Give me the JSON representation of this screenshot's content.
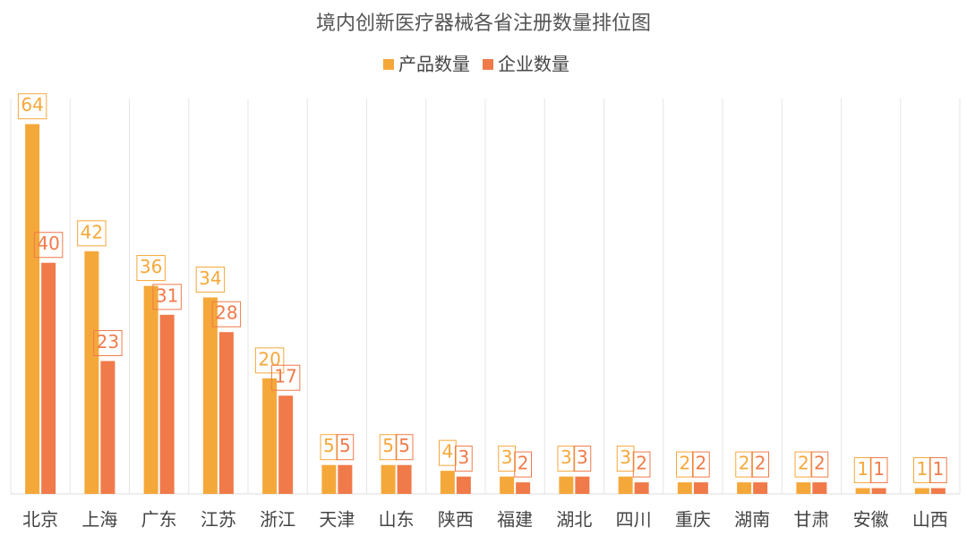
{
  "chart_data": {
    "type": "bar",
    "title": "境内创新医疗器械各省注册数量排位图",
    "categories": [
      "北京",
      "上海",
      "广东",
      "江苏",
      "浙江",
      "天津",
      "山东",
      "陕西",
      "福建",
      "湖北",
      "四川",
      "重庆",
      "湖南",
      "甘肃",
      "安徽",
      "山西"
    ],
    "series": [
      {
        "name": "产品数量",
        "color": "#f5a83a",
        "values": [
          64,
          42,
          36,
          34,
          20,
          5,
          5,
          4,
          3,
          3,
          3,
          2,
          2,
          2,
          1,
          1
        ]
      },
      {
        "name": "企业数量",
        "color": "#f07a4a",
        "values": [
          40,
          23,
          31,
          28,
          17,
          5,
          5,
          3,
          2,
          3,
          2,
          2,
          2,
          2,
          1,
          1
        ]
      }
    ],
    "ylim": [
      0,
      70
    ],
    "grid": true,
    "legend": "top"
  }
}
